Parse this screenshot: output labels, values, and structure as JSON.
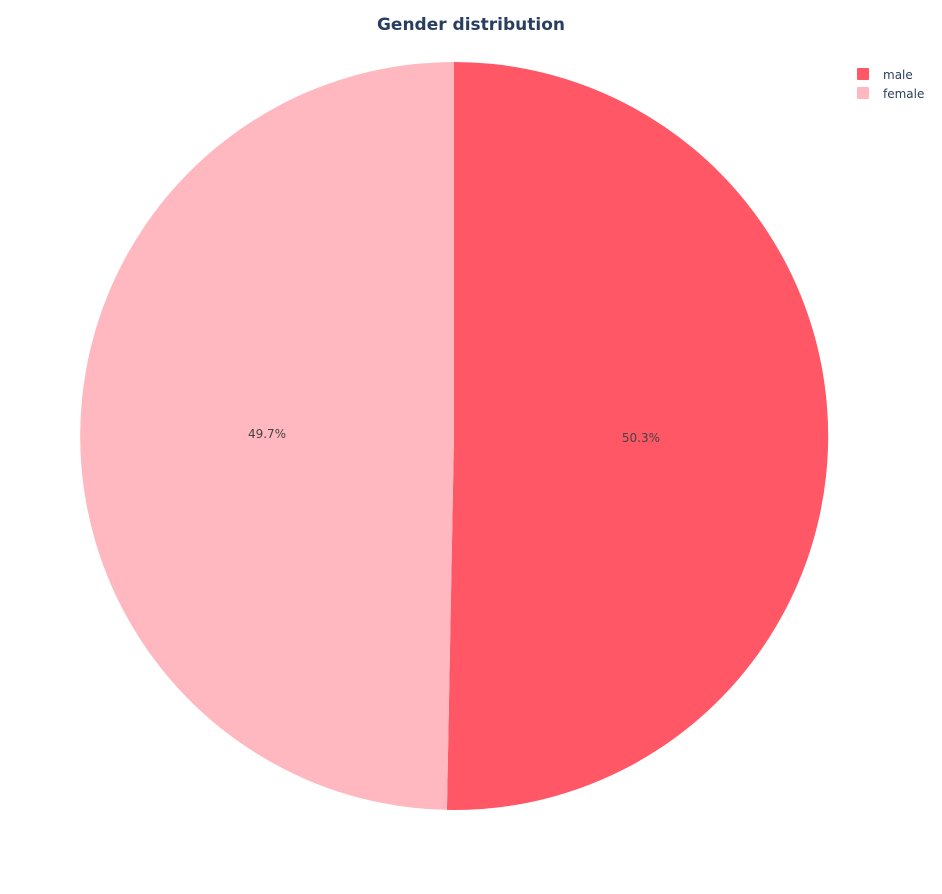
{
  "chart_data": {
    "type": "pie",
    "title": "Gender distribution",
    "labels": [
      "male",
      "female"
    ],
    "values": [
      50.3,
      49.7
    ],
    "display_labels": [
      "50.3%",
      "49.7%"
    ],
    "colors": [
      "#ff5766",
      "#ffb7c0"
    ],
    "direction": "clockwise",
    "start_angle_deg": 90,
    "legend": {
      "position": "top-right",
      "entries": [
        "male",
        "female"
      ]
    }
  }
}
